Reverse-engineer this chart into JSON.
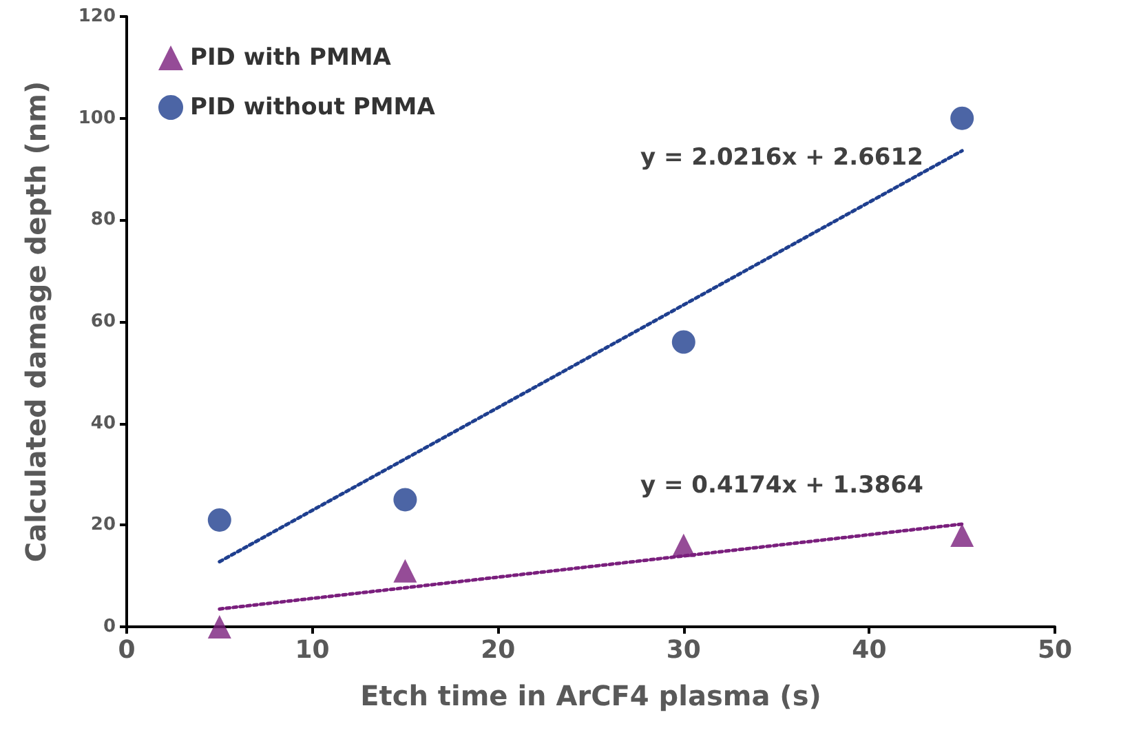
{
  "chart_data": {
    "type": "scatter",
    "xlabel": "Etch time in ArCF4 plasma (s)",
    "ylabel": "Calculated damage depth (nm)",
    "xlim": [
      0,
      50
    ],
    "xticks": [
      0,
      10,
      20,
      30,
      40,
      50
    ],
    "ylim": [
      0,
      120
    ],
    "yticks": [
      0,
      20,
      40,
      60,
      80,
      100,
      120
    ],
    "grid": false,
    "legend": "top left",
    "series": [
      {
        "name": "PID with PMMA",
        "color": "#7a1f7d",
        "marker": "triangle",
        "x": [
          5,
          15,
          30,
          45
        ],
        "values": [
          0,
          11,
          16,
          18
        ]
      },
      {
        "name": "PID without PMMA",
        "color": "#1f3f8f",
        "marker": "circle",
        "x": [
          5,
          15,
          30,
          45
        ],
        "values": [
          21,
          25,
          56,
          100
        ]
      },
      {
        "type": "line",
        "color": "#7a1f7d",
        "line_style": "dotted",
        "marker": "none",
        "x": [
          5,
          45
        ],
        "values": [
          3.5,
          20.2
        ]
      },
      {
        "type": "line",
        "color": "#1f3f8f",
        "line_style": "dotted",
        "marker": "none",
        "x": [
          5,
          45
        ],
        "values": [
          12.8,
          93.6
        ]
      }
    ],
    "annotations": [
      "y = 2.0216x + 2.6612",
      "y = 0.4174x + 1.3864"
    ]
  }
}
